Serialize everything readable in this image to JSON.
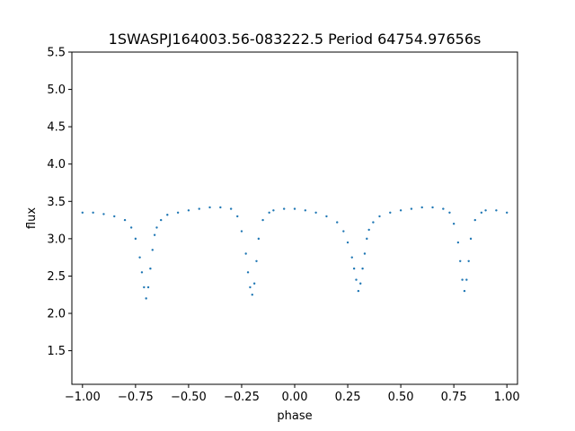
{
  "chart_data": {
    "type": "scatter",
    "title": "1SWASPJ164003.56-083222.5 Period 64754.97656s",
    "xlabel": "phase",
    "ylabel": "flux",
    "xlim": [
      -1.05,
      1.05
    ],
    "ylim": [
      1.05,
      5.5
    ],
    "xticks": [
      -1.0,
      -0.75,
      -0.5,
      -0.25,
      0.0,
      0.25,
      0.5,
      0.75,
      1.0
    ],
    "xtick_labels": [
      "−1.00",
      "−0.75",
      "−0.50",
      "−0.25",
      "0.00",
      "0.25",
      "0.50",
      "0.75",
      "1.00"
    ],
    "yticks": [
      1.5,
      2.0,
      2.5,
      3.0,
      3.5,
      4.0,
      4.5,
      5.0,
      5.5
    ],
    "ytick_labels": [
      "1.5",
      "2.0",
      "2.5",
      "3.0",
      "3.5",
      "4.0",
      "4.5",
      "5.0",
      "5.5"
    ],
    "grid": false,
    "legend": "none",
    "marker_color": "#1f77b4",
    "series": [
      {
        "x": [
          -1.0,
          -0.95,
          -0.9,
          -0.85,
          -0.8,
          -0.77,
          -0.75,
          -0.73,
          -0.72,
          -0.71,
          -0.7,
          -0.69,
          -0.68,
          -0.67,
          -0.66,
          -0.65,
          -0.63,
          -0.6,
          -0.55,
          -0.5,
          -0.45,
          -0.4,
          -0.35,
          -0.3,
          -0.27,
          -0.25,
          -0.23,
          -0.22,
          -0.21,
          -0.2,
          -0.19,
          -0.18,
          -0.17,
          -0.15,
          -0.12,
          -0.1,
          -0.05,
          0.0,
          0.05,
          0.1,
          0.15,
          0.2,
          0.23,
          0.25,
          0.27,
          0.28,
          0.29,
          0.3,
          0.31,
          0.32,
          0.33,
          0.34,
          0.35,
          0.37,
          0.4,
          0.45,
          0.5,
          0.55,
          0.6,
          0.65,
          0.7,
          0.73,
          0.75,
          0.77,
          0.78,
          0.79,
          0.8,
          0.81,
          0.82,
          0.83,
          0.85,
          0.88,
          0.9,
          0.95,
          1.0
        ],
        "y": [
          3.35,
          3.35,
          3.33,
          3.3,
          3.25,
          3.15,
          3.0,
          2.75,
          2.55,
          2.35,
          2.2,
          2.35,
          2.6,
          2.85,
          3.05,
          3.15,
          3.25,
          3.32,
          3.35,
          3.38,
          3.4,
          3.42,
          3.42,
          3.4,
          3.3,
          3.1,
          2.8,
          2.55,
          2.35,
          2.25,
          2.4,
          2.7,
          3.0,
          3.25,
          3.35,
          3.38,
          3.4,
          3.4,
          3.38,
          3.35,
          3.3,
          3.22,
          3.1,
          2.95,
          2.75,
          2.6,
          2.45,
          2.3,
          2.4,
          2.6,
          2.8,
          3.0,
          3.12,
          3.22,
          3.3,
          3.35,
          3.38,
          3.4,
          3.42,
          3.42,
          3.4,
          3.35,
          3.2,
          2.95,
          2.7,
          2.45,
          2.3,
          2.45,
          2.7,
          3.0,
          3.25,
          3.35,
          3.38,
          3.38,
          3.35
        ]
      }
    ]
  }
}
